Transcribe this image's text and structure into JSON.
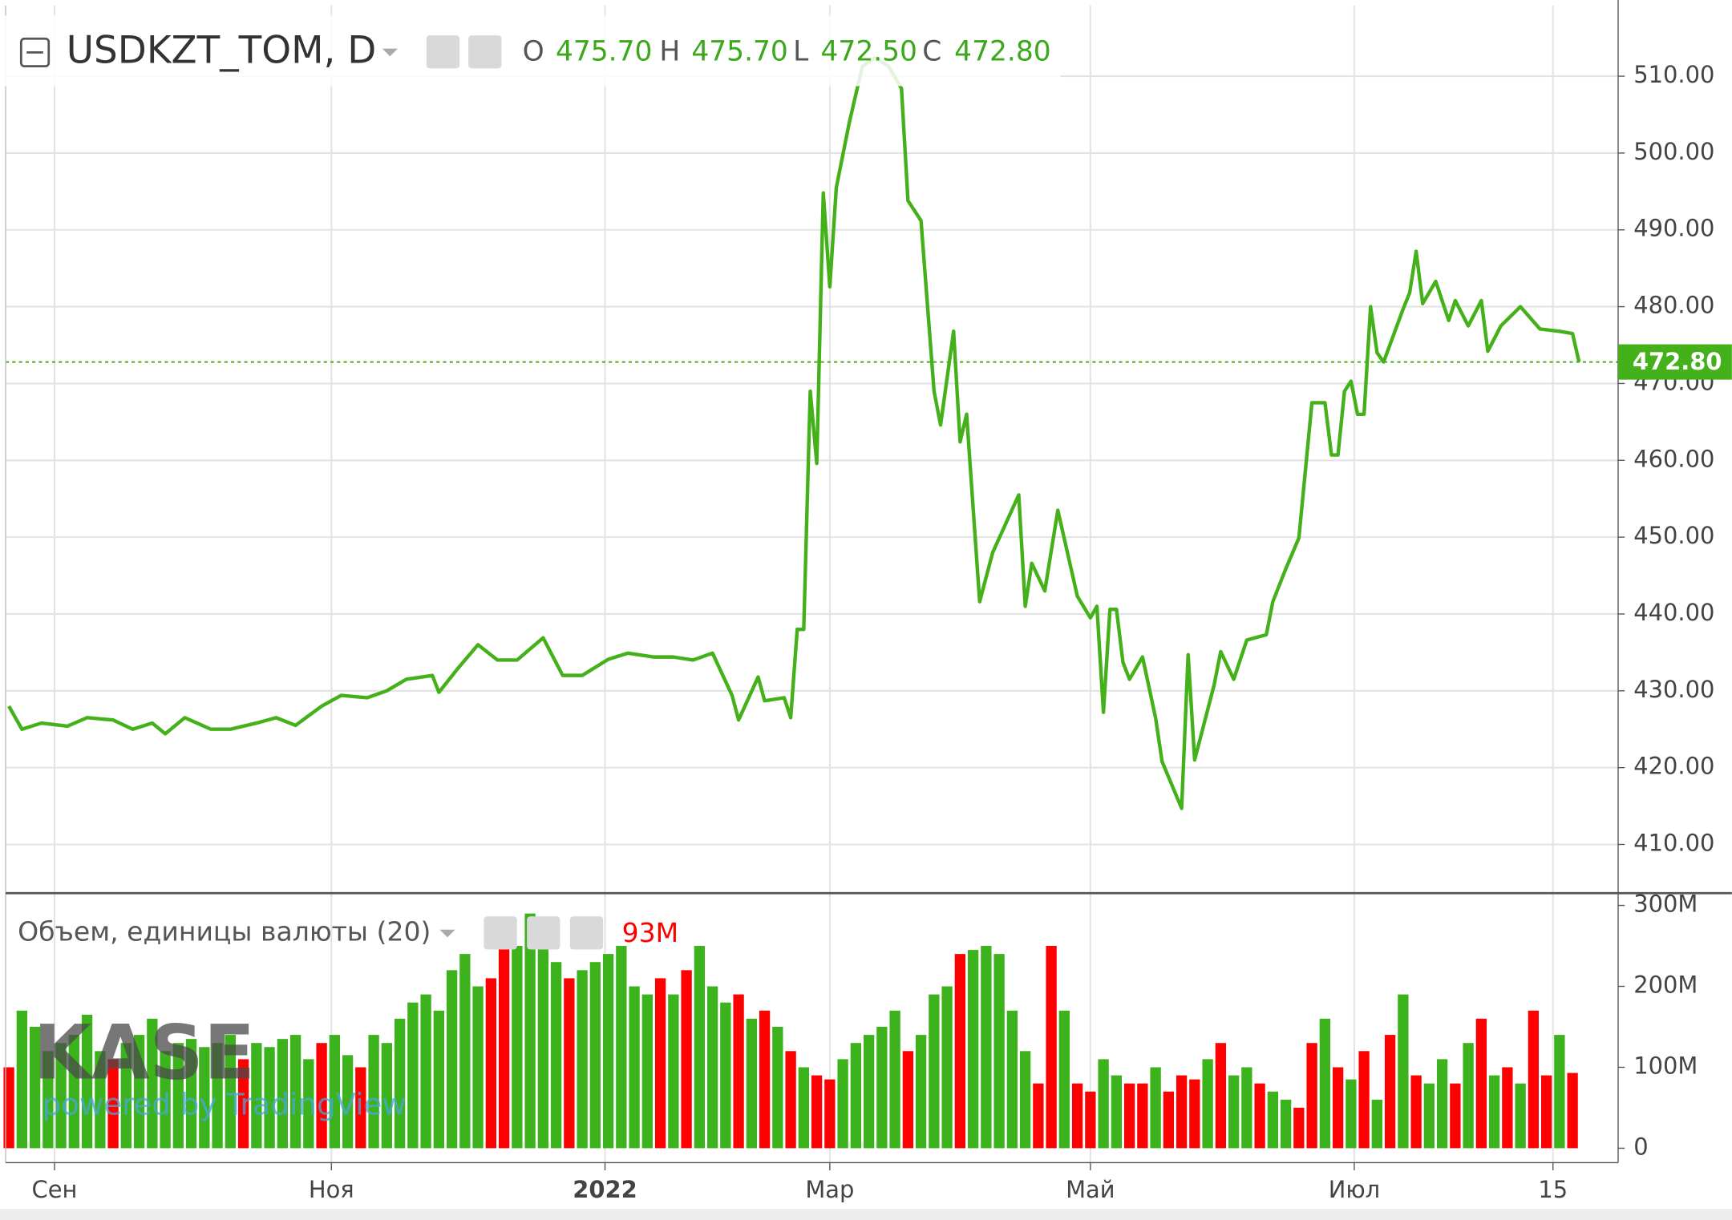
{
  "chart_data": [
    {
      "type": "line",
      "title": "USDKZT_TOM, D",
      "ohlc": [
        {
          "key": "O",
          "value": "475.70"
        },
        {
          "key": "H",
          "value": "475.70"
        },
        {
          "key": "L",
          "value": "472.50"
        },
        {
          "key": "C",
          "value": {
            "value": 472.8,
            "label": "472.80"
          }
        }
      ],
      "x": [
        0,
        2,
        5,
        9,
        12,
        16,
        19,
        22,
        24,
        27,
        31,
        34,
        38,
        41,
        44,
        48,
        51,
        55,
        58,
        61,
        65,
        66,
        69,
        72,
        75,
        78,
        82,
        85,
        88,
        92,
        95,
        99,
        102,
        105,
        108,
        111,
        112,
        115,
        116,
        119,
        120,
        121,
        122,
        123,
        124,
        125,
        126,
        127,
        129,
        131,
        133,
        135,
        137,
        138,
        140,
        142,
        143,
        145,
        146,
        147,
        149,
        151,
        155,
        156,
        157,
        159,
        161,
        164,
        166,
        167,
        168,
        169,
        170,
        171,
        172,
        174,
        176,
        177,
        180,
        181,
        182,
        185,
        186,
        188,
        190,
        193,
        194,
        196,
        198,
        200,
        202,
        203,
        204,
        205,
        206,
        207,
        208,
        209,
        210,
        211,
        214,
        215,
        216,
        217,
        219,
        221,
        222,
        224,
        226,
        227,
        229,
        232,
        235,
        238,
        240,
        241
      ],
      "series": [
        {
          "color": "#44b11b",
          "values": [
            428,
            425,
            425.8,
            425.4,
            426.5,
            426.2,
            425,
            425.8,
            424.4,
            426.5,
            425,
            425,
            425.8,
            426.5,
            425.5,
            428,
            429.4,
            429.1,
            430,
            431.5,
            432,
            429.8,
            433,
            436,
            434,
            434,
            436.9,
            432,
            432,
            434.1,
            434.9,
            434.4,
            434.4,
            434,
            434.9,
            429.4,
            426.2,
            431.8,
            428.7,
            429.1,
            426.5,
            438,
            438,
            469,
            459.6,
            494.8,
            482.6,
            495.5,
            504,
            511.3,
            512.4,
            511.3,
            508.4,
            493.8,
            491.2,
            469,
            464.6,
            476.8,
            462.4,
            466,
            441.6,
            448,
            455.5,
            441,
            446.6,
            443,
            453.5,
            442.3,
            439.5,
            441,
            427.2,
            440.6,
            440.6,
            433.7,
            431.5,
            434.4,
            426.5,
            420.8,
            414.7,
            434.7,
            421,
            430.8,
            435.1,
            431.5,
            436.6,
            437.3,
            441.6,
            445.9,
            449.9,
            467.5,
            467.5,
            460.7,
            460.7,
            469,
            470.3,
            466,
            466,
            480,
            474,
            472.8,
            479.7,
            481.8,
            487.2,
            480.4,
            483.3,
            478.2,
            480.8,
            477.5,
            480.8,
            474.2,
            477.5,
            480,
            477.1,
            476.8,
            476.5,
            472.8
          ]
        }
      ],
      "xlim": [
        -0.5,
        247
      ],
      "ylim": [
        403.8,
        519.2
      ],
      "yticks": [
        {
          "value": 410,
          "label": "410.00"
        },
        {
          "value": 420,
          "label": "420.00"
        },
        {
          "value": 430,
          "label": "430.00"
        },
        {
          "value": 440,
          "label": "440.00"
        },
        {
          "value": 450,
          "label": "450.00"
        },
        {
          "value": 460,
          "label": "460.00"
        },
        {
          "value": 470,
          "label": "470.00"
        },
        {
          "value": 480,
          "label": "480.00"
        },
        {
          "value": 490,
          "label": "490.00"
        },
        {
          "value": 500,
          "label": "500.00"
        },
        {
          "value": 510,
          "label": "510.00"
        }
      ],
      "grid": true,
      "watermark": {
        "logo": "KASE",
        "text": "powered by TradingView"
      }
    },
    {
      "type": "bar",
      "title": "Объем, единицы валюты (20)",
      "last_label": "93M",
      "x": [
        0,
        2,
        4,
        6,
        8,
        10,
        12,
        14,
        16,
        18,
        20,
        22,
        24,
        26,
        28,
        30,
        32,
        34,
        36,
        38,
        40,
        42,
        44,
        46,
        48,
        50,
        52,
        54,
        56,
        58,
        60,
        62,
        64,
        66,
        68,
        70,
        72,
        74,
        76,
        78,
        80,
        82,
        84,
        86,
        88,
        90,
        92,
        94,
        96,
        98,
        100,
        102,
        104,
        106,
        108,
        110,
        112,
        114,
        116,
        118,
        120,
        122,
        124,
        126,
        128,
        130,
        132,
        134,
        136,
        138,
        140,
        142,
        144,
        146,
        148,
        150,
        152,
        154,
        156,
        158,
        160,
        162,
        164,
        166,
        168,
        170,
        172,
        174,
        176,
        178,
        180,
        182,
        184,
        186,
        188,
        190,
        192,
        194,
        196,
        198,
        200,
        202,
        204,
        206,
        208,
        210,
        212,
        214,
        216,
        218,
        220,
        222,
        224,
        226,
        228,
        230,
        232,
        234,
        236,
        238,
        240
      ],
      "values": [
        100,
        170,
        150,
        120,
        130,
        140,
        165,
        120,
        110,
        130,
        140,
        160,
        120,
        130,
        135,
        125,
        130,
        140,
        110,
        130,
        125,
        135,
        140,
        110,
        130,
        140,
        115,
        100,
        140,
        130,
        160,
        180,
        190,
        170,
        220,
        240,
        200,
        210,
        260,
        250,
        290,
        270,
        230,
        210,
        220,
        230,
        240,
        250,
        200,
        190,
        210,
        190,
        220,
        250,
        200,
        180,
        190,
        160,
        170,
        150,
        120,
        100,
        90,
        85,
        110,
        130,
        140,
        150,
        170,
        120,
        140,
        190,
        200,
        240,
        245,
        250,
        240,
        170,
        120,
        80,
        250,
        170,
        80,
        70,
        110,
        90,
        80,
        80,
        100,
        70,
        90,
        85,
        110,
        130,
        90,
        100,
        80,
        70,
        60,
        50,
        130,
        160,
        100,
        85,
        120,
        60,
        140,
        190,
        90,
        80,
        110,
        80,
        130,
        160,
        90,
        100,
        80,
        170,
        90,
        140,
        93
      ],
      "up_color": "#3cb31c",
      "down_color": "#ff0000",
      "down_bars": [
        0,
        8,
        18,
        24,
        27,
        37,
        38,
        43,
        50,
        52,
        56,
        58,
        60,
        62,
        63,
        69,
        73,
        79,
        80,
        82,
        83,
        86,
        87,
        89,
        90,
        91,
        93,
        96,
        99,
        100,
        102,
        104,
        106,
        108,
        111,
        113,
        115,
        117,
        118,
        120
      ],
      "xlim": [
        -0.5,
        247
      ],
      "ylim": [
        -16.4,
        311
      ],
      "yticks": [
        0,
        {
          "value": 100,
          "label": "100M"
        },
        {
          "value": 200,
          "label": "200M"
        },
        {
          "value": 300,
          "label": "300M"
        }
      ],
      "xticks": [
        {
          "value": 7,
          "label": "Сен"
        },
        {
          "value": 49.5,
          "label": "Ноя"
        },
        {
          "value": 91.5,
          "label": "2022"
        },
        {
          "value": 126,
          "label": "Мар"
        },
        {
          "value": 166,
          "label": "Май"
        },
        {
          "value": 206.5,
          "label": "Июл"
        },
        {
          "value": 237,
          "label": "15"
        }
      ]
    }
  ]
}
